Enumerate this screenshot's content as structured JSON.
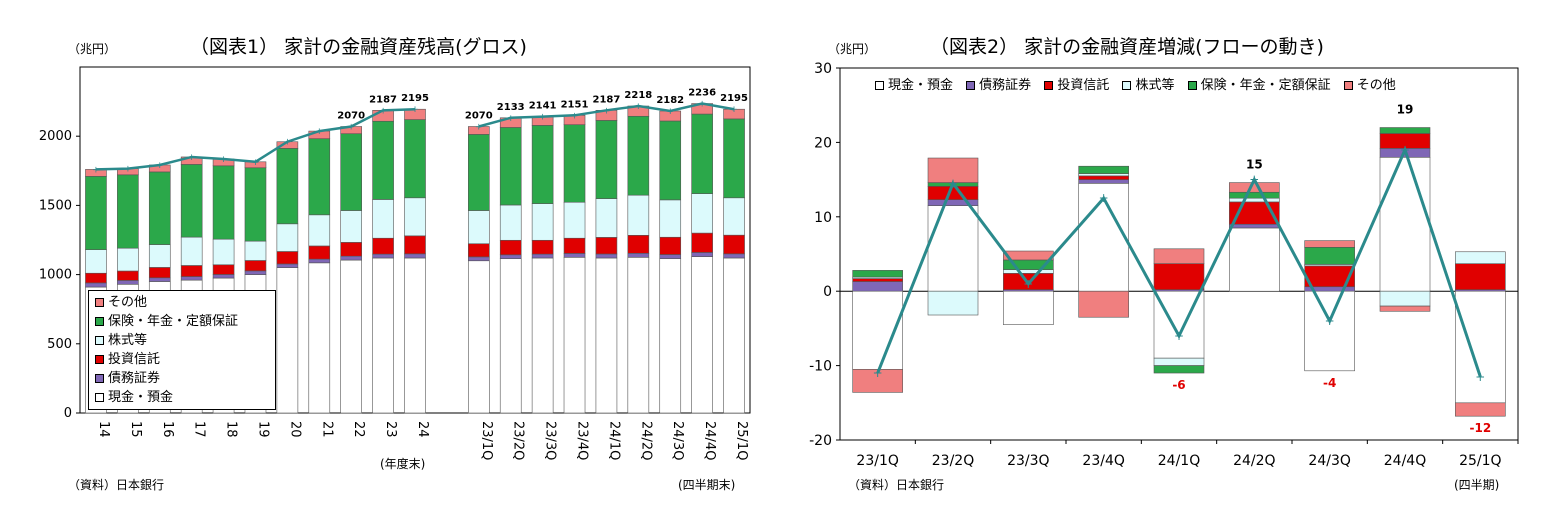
{
  "colors": {
    "cash": "#ffffff",
    "bonds": "#7f67b6",
    "trusts": "#e00000",
    "stocks": "#dcfafc",
    "insurance": "#2ba84a",
    "other": "#f07f7f",
    "line": "#2b8a8c",
    "label_neg": "#e00000"
  },
  "panel1": {
    "unit": "（兆円）",
    "title": "（図表1）  家計の金融資産残高(グロス)",
    "source": "（資料）日本銀行",
    "period_annual": "(年度末)",
    "period_quarterly": "(四半期末)"
  },
  "panel2": {
    "unit": "（兆円）",
    "title": "（図表2）  家計の金融資産増減(フローの動き)",
    "source": "（資料）日本銀行",
    "period": "(四半期)"
  },
  "chart_data": [
    {
      "type": "bar",
      "stacked": true,
      "title": "（図表1）  家計の金融資産残高(グロス)",
      "ylabel": "（兆円）",
      "ylim": [
        0,
        2500
      ],
      "yticks": [
        0,
        500,
        1000,
        1500,
        2000
      ],
      "categories": [
        "14",
        "15",
        "16",
        "17",
        "18",
        "19",
        "20",
        "21",
        "22",
        "23",
        "24",
        "23/1Q",
        "23/2Q",
        "23/3Q",
        "23/4Q",
        "24/1Q",
        "24/2Q",
        "24/3Q",
        "24/4Q",
        "25/1Q"
      ],
      "legend_position": "bottom-left",
      "series": [
        {
          "name": "現金・預金",
          "key": "cash",
          "values": [
            910,
            930,
            950,
            960,
            975,
            1000,
            1050,
            1085,
            1105,
            1120,
            1120,
            1100,
            1115,
            1120,
            1125,
            1120,
            1125,
            1115,
            1130,
            1120
          ]
        },
        {
          "name": "債務証券",
          "key": "bonds",
          "values": [
            30,
            28,
            27,
            26,
            26,
            27,
            27,
            27,
            28,
            28,
            30,
            28,
            28,
            28,
            28,
            29,
            29,
            30,
            30,
            30
          ]
        },
        {
          "name": "投資信託",
          "key": "trusts",
          "values": [
            70,
            68,
            75,
            80,
            70,
            75,
            90,
            95,
            100,
            115,
            130,
            95,
            105,
            100,
            110,
            120,
            130,
            125,
            140,
            135
          ]
        },
        {
          "name": "株式等",
          "key": "stocks",
          "values": [
            170,
            165,
            165,
            205,
            185,
            140,
            200,
            225,
            230,
            280,
            275,
            240,
            255,
            265,
            260,
            280,
            290,
            270,
            285,
            270
          ]
        },
        {
          "name": "保険・年金・定額保証",
          "key": "insurance",
          "values": [
            530,
            530,
            525,
            525,
            530,
            530,
            545,
            550,
            555,
            565,
            565,
            550,
            560,
            565,
            560,
            565,
            570,
            570,
            575,
            570
          ]
        },
        {
          "name": "その他",
          "key": "other",
          "values": [
            50,
            45,
            50,
            54,
            49,
            43,
            48,
            55,
            52,
            79,
            75,
            57,
            70,
            63,
            68,
            73,
            74,
            72,
            76,
            70
          ]
        }
      ],
      "total_line": [
        1760,
        1766,
        1792,
        1850,
        1835,
        1815,
        1960,
        2037,
        2070,
        2187,
        2195,
        2070,
        2133,
        2141,
        2151,
        2187,
        2218,
        2182,
        2236,
        2195
      ],
      "total_labels": [
        {
          "index": 8,
          "text": "2070"
        },
        {
          "index": 9,
          "text": "2187"
        },
        {
          "index": 10,
          "text": "2195"
        },
        {
          "index": 11,
          "text": "2070"
        },
        {
          "index": 12,
          "text": "2133"
        },
        {
          "index": 13,
          "text": "2141"
        },
        {
          "index": 14,
          "text": "2151"
        },
        {
          "index": 15,
          "text": "2187"
        },
        {
          "index": 16,
          "text": "2218"
        },
        {
          "index": 17,
          "text": "2182"
        },
        {
          "index": 18,
          "text": "2236"
        },
        {
          "index": 19,
          "text": "2195"
        }
      ]
    },
    {
      "type": "bar",
      "stacked": true,
      "title": "（図表2）  家計の金融資産増減(フローの動き)",
      "ylabel": "（兆円）",
      "ylim": [
        -20,
        30
      ],
      "yticks": [
        -20,
        -10,
        0,
        10,
        20,
        30
      ],
      "categories": [
        "23/1Q",
        "23/2Q",
        "23/3Q",
        "23/4Q",
        "24/1Q",
        "24/2Q",
        "24/3Q",
        "24/4Q",
        "25/1Q"
      ],
      "legend_position": "top",
      "series": [
        {
          "name": "現金・預金",
          "key": "cash",
          "values": [
            -10.5,
            11.5,
            -4.5,
            14.5,
            -9,
            8.5,
            -10.7,
            18,
            -15
          ]
        },
        {
          "name": "債務証券",
          "key": "bonds",
          "values": [
            1.3,
            0.8,
            0.2,
            0.5,
            0.2,
            0.5,
            0.6,
            1.2,
            0.2
          ]
        },
        {
          "name": "投資信託",
          "key": "trusts",
          "values": [
            0.4,
            1.8,
            2.2,
            0.5,
            3.5,
            3,
            2.8,
            2,
            3.5
          ]
        },
        {
          "name": "株式等",
          "key": "stocks",
          "values": [
            0.2,
            -3.2,
            0.5,
            0.3,
            -1,
            0.5,
            0.2,
            -2,
            1.6
          ]
        },
        {
          "name": "保険・年金・定額保証",
          "key": "insurance",
          "values": [
            0.9,
            0.5,
            1.3,
            1,
            -1,
            0.8,
            2.3,
            0.8,
            0
          ]
        },
        {
          "name": "その他",
          "key": "other",
          "values": [
            -3.1,
            3.3,
            1.2,
            -3.5,
            2,
            1.3,
            0.9,
            -0.7,
            -1.8
          ]
        }
      ],
      "total_line": [
        -11,
        14.5,
        1,
        12.5,
        -6,
        15,
        -4,
        19,
        -11.5
      ],
      "total_labels": [
        {
          "index": 4,
          "text": "-6",
          "color": "neg"
        },
        {
          "index": 5,
          "text": "15",
          "color": "pos"
        },
        {
          "index": 6,
          "text": "-4",
          "color": "neg"
        },
        {
          "index": 7,
          "text": "19",
          "color": "pos"
        },
        {
          "index": 8,
          "text": "-12",
          "color": "neg"
        }
      ]
    }
  ]
}
